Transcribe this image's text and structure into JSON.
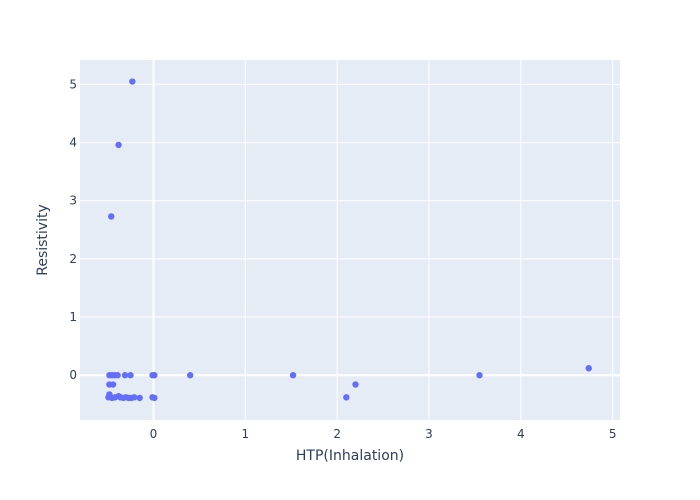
{
  "chart_data": {
    "type": "scatter",
    "xlabel": "HTP(Inhalation)",
    "ylabel": "Resistivity",
    "xlim": [
      -0.8,
      5.08
    ],
    "ylim": [
      -0.77,
      5.42
    ],
    "xticks": [
      0,
      1,
      2,
      3,
      4,
      5
    ],
    "yticks": [
      0,
      1,
      2,
      3,
      4,
      5
    ],
    "grid": true,
    "colors": {
      "plot_bg": "#e5ecf6",
      "grid": "#ffffff",
      "marker": "#636efa",
      "text": "#2a3f5f"
    },
    "points": [
      {
        "x": -0.23,
        "y": 5.05
      },
      {
        "x": -0.38,
        "y": 3.96
      },
      {
        "x": -0.46,
        "y": 2.73
      },
      {
        "x": -0.48,
        "y": 0.0
      },
      {
        "x": -0.45,
        "y": 0.0
      },
      {
        "x": -0.42,
        "y": 0.0
      },
      {
        "x": -0.39,
        "y": 0.0
      },
      {
        "x": -0.31,
        "y": 0.0
      },
      {
        "x": -0.25,
        "y": 0.0
      },
      {
        "x": -0.48,
        "y": -0.16
      },
      {
        "x": -0.44,
        "y": -0.16
      },
      {
        "x": -0.48,
        "y": -0.33
      },
      {
        "x": -0.49,
        "y": -0.38
      },
      {
        "x": -0.45,
        "y": -0.39
      },
      {
        "x": -0.42,
        "y": -0.38
      },
      {
        "x": -0.38,
        "y": -0.36
      },
      {
        "x": -0.36,
        "y": -0.38
      },
      {
        "x": -0.33,
        "y": -0.39
      },
      {
        "x": -0.3,
        "y": -0.38
      },
      {
        "x": -0.27,
        "y": -0.39
      },
      {
        "x": -0.24,
        "y": -0.39
      },
      {
        "x": -0.21,
        "y": -0.38
      },
      {
        "x": -0.15,
        "y": -0.39
      },
      {
        "x": -0.01,
        "y": 0.0
      },
      {
        "x": 0.01,
        "y": 0.0
      },
      {
        "x": -0.01,
        "y": -0.38
      },
      {
        "x": 0.01,
        "y": -0.39
      },
      {
        "x": 0.4,
        "y": 0.0
      },
      {
        "x": 1.52,
        "y": 0.0
      },
      {
        "x": 2.1,
        "y": -0.38
      },
      {
        "x": 2.2,
        "y": -0.16
      },
      {
        "x": 3.55,
        "y": 0.0
      },
      {
        "x": 4.74,
        "y": 0.12
      }
    ]
  }
}
